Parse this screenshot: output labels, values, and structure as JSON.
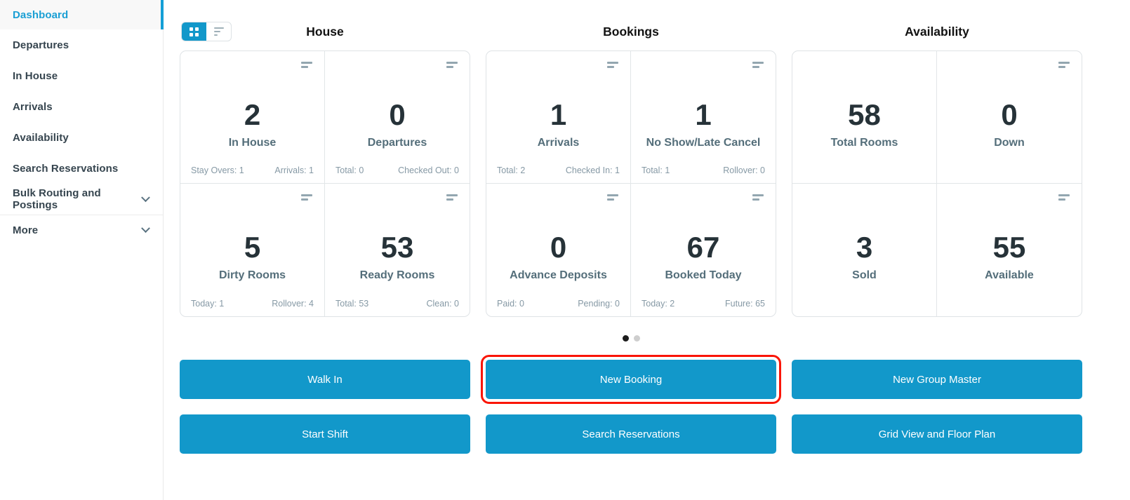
{
  "colors": {
    "accent": "#1298ca",
    "active_link": "#1a9fd4",
    "annotation_highlight": "#fa1505",
    "number_text": "#263238",
    "label_text": "#546e7a",
    "footer_text": "#8699a5"
  },
  "sidebar": {
    "items": [
      {
        "label": "Dashboard",
        "active": true
      },
      {
        "label": "Departures"
      },
      {
        "label": "In House"
      },
      {
        "label": "Arrivals"
      },
      {
        "label": "Availability"
      },
      {
        "label": "Search Reservations"
      },
      {
        "label": "Bulk Routing and Postings",
        "chevron": true
      },
      {
        "label": "More",
        "chevron": true
      }
    ]
  },
  "view_toggle": {
    "active": "grid",
    "icons": [
      "grid-view-icon",
      "list-view-icon"
    ]
  },
  "groups": [
    {
      "title": "House",
      "cards": [
        {
          "value": "2",
          "label": "In House",
          "stat_left": "Stay Overs: 1",
          "stat_right": "Arrivals: 1"
        },
        {
          "value": "0",
          "label": "Departures",
          "stat_left": "Total: 0",
          "stat_right": "Checked Out: 0"
        },
        {
          "value": "5",
          "label": "Dirty Rooms",
          "stat_left": "Today: 1",
          "stat_right": "Rollover: 4"
        },
        {
          "value": "53",
          "label": "Ready Rooms",
          "stat_left": "Total: 53",
          "stat_right": "Clean: 0"
        }
      ]
    },
    {
      "title": "Bookings",
      "cards": [
        {
          "value": "1",
          "label": "Arrivals",
          "stat_left": "Total: 2",
          "stat_right": "Checked In: 1"
        },
        {
          "value": "1",
          "label": "No Show/Late Cancel",
          "stat_left": "Total: 1",
          "stat_right": "Rollover: 0"
        },
        {
          "value": "0",
          "label": "Advance Deposits",
          "stat_left": "Paid: 0",
          "stat_right": "Pending: 0"
        },
        {
          "value": "67",
          "label": "Booked Today",
          "stat_left": "Today: 2",
          "stat_right": "Future: 65"
        }
      ]
    },
    {
      "title": "Availability",
      "cards": [
        {
          "value": "58",
          "label": "Total Rooms"
        },
        {
          "value": "0",
          "label": "Down"
        },
        {
          "value": "3",
          "label": "Sold"
        },
        {
          "value": "55",
          "label": "Available"
        }
      ]
    }
  ],
  "pagination": {
    "total_dots": 2,
    "active_dot": 1
  },
  "action_buttons": {
    "row1": [
      {
        "label": "Walk In"
      },
      {
        "label": "New Booking",
        "highlighted": true
      },
      {
        "label": "New Group Master"
      }
    ],
    "row2": [
      {
        "label": "Start Shift"
      },
      {
        "label": "Search Reservations"
      },
      {
        "label": "Grid View and Floor Plan"
      }
    ]
  }
}
